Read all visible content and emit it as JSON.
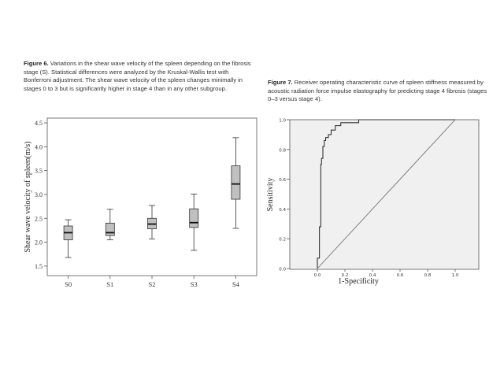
{
  "figure6": {
    "label": "Figure 6.",
    "caption": "Variations in the shear wave velocity of the spleen depending on the fibrosis stage (S). Statistical differences were analyzed by the Kruskal-Wallis test with Bonferroni adjustment. The shear wave velocity of the spleen changes minimally in stages 0 to 3 but is significantly higher in stage 4 than in any other subgroup."
  },
  "figure7": {
    "label": "Figure 7.",
    "caption": "Receiver operating characteristic curve of spleen stiffness measured by acoustic radiation force impulse elastography for predicting stage 4 fibrosis (stages 0–3 versus stage 4)."
  },
  "chart_data": [
    {
      "type": "boxplot",
      "ylabel": "Shear wave velocity of spleen(m/s)",
      "xlabel": "",
      "ylim": [
        1.3,
        4.6
      ],
      "yticks": [
        "1.5",
        "2.0",
        "2.5",
        "3.0",
        "3.5",
        "4.0",
        "4.5"
      ],
      "ytick_values": [
        1.5,
        2.0,
        2.5,
        3.0,
        3.5,
        4.0,
        4.5
      ],
      "categories": [
        "S0",
        "S1",
        "S2",
        "S3",
        "S4"
      ],
      "boxes": [
        {
          "min": 1.68,
          "q1": 2.05,
          "median": 2.2,
          "q3": 2.34,
          "max": 2.47
        },
        {
          "min": 2.05,
          "q1": 2.14,
          "median": 2.2,
          "q3": 2.4,
          "max": 2.69
        },
        {
          "min": 2.07,
          "q1": 2.28,
          "median": 2.38,
          "q3": 2.5,
          "max": 2.77
        },
        {
          "min": 1.83,
          "q1": 2.31,
          "median": 2.41,
          "q3": 2.7,
          "max": 3.01
        },
        {
          "min": 2.29,
          "q1": 2.9,
          "median": 3.22,
          "q3": 3.6,
          "max": 4.19
        }
      ],
      "grid": false,
      "box_color": "#c0c0c0"
    },
    {
      "type": "line",
      "xlabel": "1-Specificity",
      "ylabel": "Sensitivity",
      "xlim": [
        0,
        1.0
      ],
      "ylim": [
        0,
        1.0
      ],
      "xticks": [
        "0.0",
        "0.2",
        "0.4",
        "0.6",
        "0.8",
        "1.0"
      ],
      "xtick_values": [
        0.0,
        0.2,
        0.4,
        0.6,
        0.8,
        1.0
      ],
      "yticks": [
        "0.0",
        "0.2",
        "0.4",
        "0.6",
        "0.8",
        "1.0"
      ],
      "ytick_values": [
        0.0,
        0.2,
        0.4,
        0.6,
        0.8,
        1.0
      ],
      "series": [
        {
          "x": [
            0.0,
            0.0,
            0.015,
            0.015,
            0.025,
            0.025,
            0.03,
            0.03,
            0.04,
            0.04,
            0.05,
            0.05,
            0.06,
            0.06,
            0.08,
            0.08,
            0.1,
            0.1,
            0.13,
            0.13,
            0.17,
            0.17,
            0.3,
            0.3,
            1.0
          ],
          "y": [
            0.0,
            0.07,
            0.07,
            0.28,
            0.28,
            0.7,
            0.7,
            0.74,
            0.74,
            0.82,
            0.82,
            0.86,
            0.86,
            0.88,
            0.88,
            0.9,
            0.9,
            0.93,
            0.93,
            0.96,
            0.96,
            0.98,
            0.98,
            1.0,
            1.0
          ]
        },
        {
          "x": [
            0.0,
            1.0
          ],
          "y": [
            0.0,
            1.0
          ]
        }
      ],
      "background": "#f0f0f0",
      "grid": false
    }
  ]
}
